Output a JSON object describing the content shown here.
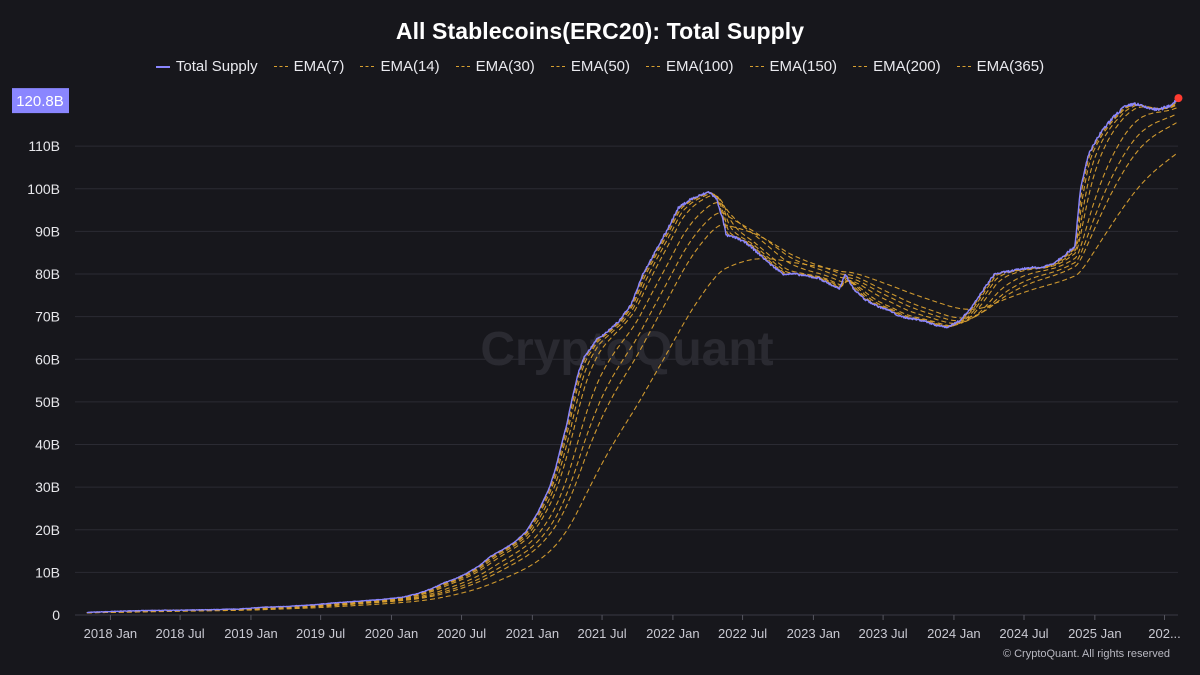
{
  "chart_data": {
    "type": "line",
    "title": "All Stablecoins(ERC20): Total Supply",
    "xlabel": "",
    "ylabel": "",
    "ylim": [
      0,
      122
    ],
    "y_unit": "B",
    "y_ticks": [
      "0",
      "10B",
      "20B",
      "30B",
      "40B",
      "50B",
      "60B",
      "70B",
      "80B",
      "90B",
      "100B",
      "110B"
    ],
    "x_tick_labels": [
      "2018 Jan",
      "2018 Jul",
      "2019 Jan",
      "2019 Jul",
      "2020 Jan",
      "2020 Jul",
      "2021 Jan",
      "2021 Jul",
      "2022 Jan",
      "2022 Jul",
      "2023 Jan",
      "2023 Jul",
      "2024 Jan",
      "2024 Jul",
      "2025 Jan",
      "202..."
    ],
    "x_tick_dates": [
      "2018-01-01",
      "2018-07-01",
      "2019-01-01",
      "2019-07-01",
      "2020-01-01",
      "2020-07-01",
      "2021-01-01",
      "2021-07-01",
      "2022-01-01",
      "2022-07-01",
      "2023-01-01",
      "2023-07-01",
      "2024-01-01",
      "2024-07-01",
      "2025-01-01",
      "2025-07-01"
    ],
    "xlim": [
      "2017-10-01",
      "2025-08-05"
    ],
    "current_value_label": "120.8B",
    "grid": "horizontal",
    "legend_position": "top-center",
    "colors": {
      "background": "#17171c",
      "total_supply": "#8a86ff",
      "ema": "#d9a030",
      "current_marker": "#ff3b30",
      "grid": "#2b2b33"
    },
    "series": [
      {
        "name": "Total Supply",
        "style": "solid",
        "dates": [
          "2017-11-01",
          "2018-01-01",
          "2018-03-01",
          "2018-06-01",
          "2018-09-01",
          "2018-12-01",
          "2019-02-01",
          "2019-04-01",
          "2019-06-01",
          "2019-08-01",
          "2019-10-01",
          "2019-12-01",
          "2020-02-01",
          "2020-03-15",
          "2020-04-15",
          "2020-05-15",
          "2020-06-15",
          "2020-07-15",
          "2020-08-15",
          "2020-09-15",
          "2020-10-15",
          "2020-11-15",
          "2020-12-15",
          "2021-01-15",
          "2021-02-15",
          "2021-03-01",
          "2021-03-15",
          "2021-04-01",
          "2021-04-15",
          "2021-05-01",
          "2021-05-15",
          "2021-06-01",
          "2021-06-15",
          "2021-07-15",
          "2021-08-15",
          "2021-09-15",
          "2021-10-15",
          "2021-11-15",
          "2021-12-15",
          "2022-01-15",
          "2022-02-15",
          "2022-03-15",
          "2022-04-05",
          "2022-04-25",
          "2022-05-10",
          "2022-05-20",
          "2022-06-15",
          "2022-07-15",
          "2022-08-15",
          "2022-09-15",
          "2022-10-15",
          "2022-11-15",
          "2022-12-15",
          "2023-01-15",
          "2023-02-15",
          "2023-03-10",
          "2023-03-25",
          "2023-04-15",
          "2023-05-15",
          "2023-06-15",
          "2023-07-15",
          "2023-08-15",
          "2023-09-15",
          "2023-10-15",
          "2023-11-15",
          "2023-12-15",
          "2024-01-15",
          "2024-02-15",
          "2024-03-15",
          "2024-04-15",
          "2024-05-15",
          "2024-06-15",
          "2024-07-15",
          "2024-08-15",
          "2024-09-15",
          "2024-10-15",
          "2024-11-10",
          "2024-11-25",
          "2024-12-15",
          "2025-01-15",
          "2025-02-15",
          "2025-03-15",
          "2025-04-15",
          "2025-05-15",
          "2025-06-15",
          "2025-07-15",
          "2025-08-01"
        ],
        "values": [
          0.6,
          0.8,
          1.0,
          1.1,
          1.2,
          1.4,
          1.8,
          2.0,
          2.3,
          2.8,
          3.2,
          3.6,
          4.2,
          5.2,
          6.2,
          7.5,
          8.5,
          9.8,
          11.5,
          13.8,
          15.3,
          17.0,
          19.5,
          24.0,
          30.0,
          34.0,
          39.0,
          45.0,
          51.0,
          57.0,
          60.5,
          62.5,
          64.5,
          66.5,
          69.0,
          73.0,
          80.0,
          85.0,
          90.0,
          95.5,
          97.5,
          98.5,
          99.3,
          97.5,
          93.0,
          89.0,
          88.5,
          87.0,
          84.5,
          82.0,
          80.0,
          80.0,
          79.5,
          79.0,
          77.5,
          76.5,
          80.0,
          76.5,
          74.0,
          72.5,
          71.5,
          70.0,
          69.5,
          69.0,
          68.0,
          67.5,
          69.0,
          72.0,
          76.0,
          80.0,
          80.5,
          81.0,
          81.5,
          81.5,
          82.5,
          84.5,
          86.5,
          100.0,
          108.0,
          113.0,
          116.5,
          119.0,
          120.0,
          119.0,
          118.5,
          119.5,
          120.8
        ]
      },
      {
        "name": "EMA(7)",
        "style": "dashed",
        "lag_days": 4
      },
      {
        "name": "EMA(14)",
        "style": "dashed",
        "lag_days": 8
      },
      {
        "name": "EMA(30)",
        "style": "dashed",
        "lag_days": 15
      },
      {
        "name": "EMA(50)",
        "style": "dashed",
        "lag_days": 25
      },
      {
        "name": "EMA(100)",
        "style": "dashed",
        "lag_days": 50
      },
      {
        "name": "EMA(150)",
        "style": "dashed",
        "lag_days": 75
      },
      {
        "name": "EMA(200)",
        "style": "dashed",
        "lag_days": 100
      },
      {
        "name": "EMA(365)",
        "style": "dashed",
        "lag_days": 182
      }
    ]
  },
  "watermark": "CryptoQuant",
  "copyright": "© CryptoQuant. All rights reserved"
}
